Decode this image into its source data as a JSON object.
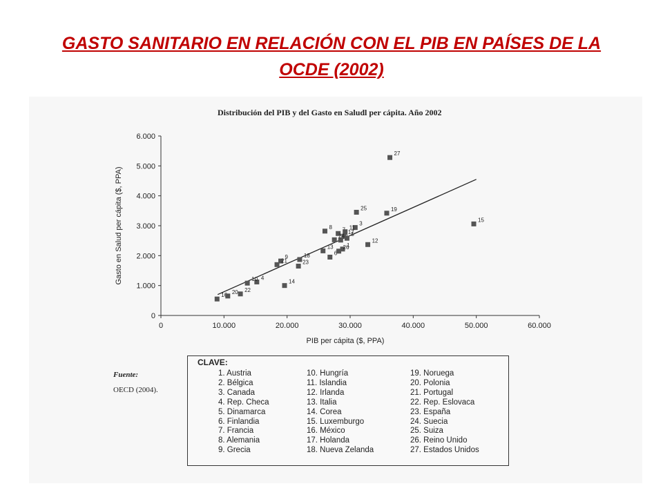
{
  "slide_title": "GASTO SANITARIO EN RELACIÓN CON EL PIB EN PAÍSES DE LA OCDE (2002)",
  "source": {
    "label": "Fuente:",
    "text": "OECD (2004)."
  },
  "key": {
    "title": "CLAVE:",
    "columns": [
      [
        "1. Austria",
        "2. Bélgica",
        "3. Canada",
        "4. Rep. Checa",
        "5. Dinamarca",
        "6. Finlandia",
        "7. Francia",
        "8. Alemania",
        "9. Grecia"
      ],
      [
        "10. Hungría",
        "11. Islandia",
        "12. Irlanda",
        "13. Italia",
        "14. Corea",
        "15. Luxemburgo",
        "16. México",
        "17. Holanda",
        "18. Nueva Zelanda"
      ],
      [
        "19. Noruega",
        "20. Polonia",
        "21. Portugal",
        "22. Rep. Eslovaca",
        "23. España",
        "24. Suecia",
        "25. Suiza",
        "26. Reino Unido",
        "27. Estados Unidos"
      ]
    ]
  },
  "chart_data": {
    "type": "scatter",
    "title": "Distribución del PIB y del Gasto en Saludl per cápita. Año 2002",
    "xlabel": "PIB per cápita ($, PPA)",
    "ylabel": "Gasto en Salud per cápita ($, PPA)",
    "xlim": [
      0,
      60000
    ],
    "ylim": [
      0,
      6000
    ],
    "xticks": [
      0,
      10000,
      20000,
      30000,
      40000,
      50000,
      60000
    ],
    "xtick_labels": [
      "0",
      "10.000",
      "20.000",
      "30.000",
      "40.000",
      "50.000",
      "60.000"
    ],
    "yticks": [
      0,
      1000,
      2000,
      3000,
      4000,
      5000,
      6000
    ],
    "ytick_labels": [
      "0",
      "1.000",
      "2.000",
      "3.000",
      "4.000",
      "5.000",
      "6.000"
    ],
    "grid": false,
    "points": [
      {
        "label": "1",
        "x": 28800,
        "y": 2220
      },
      {
        "label": "2",
        "x": 28500,
        "y": 2520
      },
      {
        "label": "3",
        "x": 30800,
        "y": 2940
      },
      {
        "label": "4",
        "x": 15200,
        "y": 1120
      },
      {
        "label": "5",
        "x": 29500,
        "y": 2580
      },
      {
        "label": "6",
        "x": 26800,
        "y": 1950
      },
      {
        "label": "7",
        "x": 28100,
        "y": 2740
      },
      {
        "label": "8",
        "x": 26000,
        "y": 2820
      },
      {
        "label": "9",
        "x": 19000,
        "y": 1820
      },
      {
        "label": "10",
        "x": 13700,
        "y": 1080
      },
      {
        "label": "11",
        "x": 29200,
        "y": 2800
      },
      {
        "label": "12",
        "x": 32800,
        "y": 2370
      },
      {
        "label": "13",
        "x": 25700,
        "y": 2160
      },
      {
        "label": "14",
        "x": 19600,
        "y": 1000
      },
      {
        "label": "15",
        "x": 49600,
        "y": 3060
      },
      {
        "label": "16",
        "x": 8900,
        "y": 550
      },
      {
        "label": "17",
        "x": 29000,
        "y": 2650
      },
      {
        "label": "18",
        "x": 22000,
        "y": 1870
      },
      {
        "label": "19",
        "x": 35800,
        "y": 3420
      },
      {
        "label": "20",
        "x": 10600,
        "y": 650
      },
      {
        "label": "21",
        "x": 18400,
        "y": 1700
      },
      {
        "label": "22",
        "x": 12600,
        "y": 720
      },
      {
        "label": "23",
        "x": 21800,
        "y": 1650
      },
      {
        "label": "24",
        "x": 27500,
        "y": 2530
      },
      {
        "label": "25",
        "x": 31000,
        "y": 3450
      },
      {
        "label": "26",
        "x": 28200,
        "y": 2150
      },
      {
        "label": "27",
        "x": 36300,
        "y": 5280
      }
    ],
    "trendline": {
      "x": [
        9000,
        50000
      ],
      "y": [
        700,
        4550
      ]
    }
  }
}
